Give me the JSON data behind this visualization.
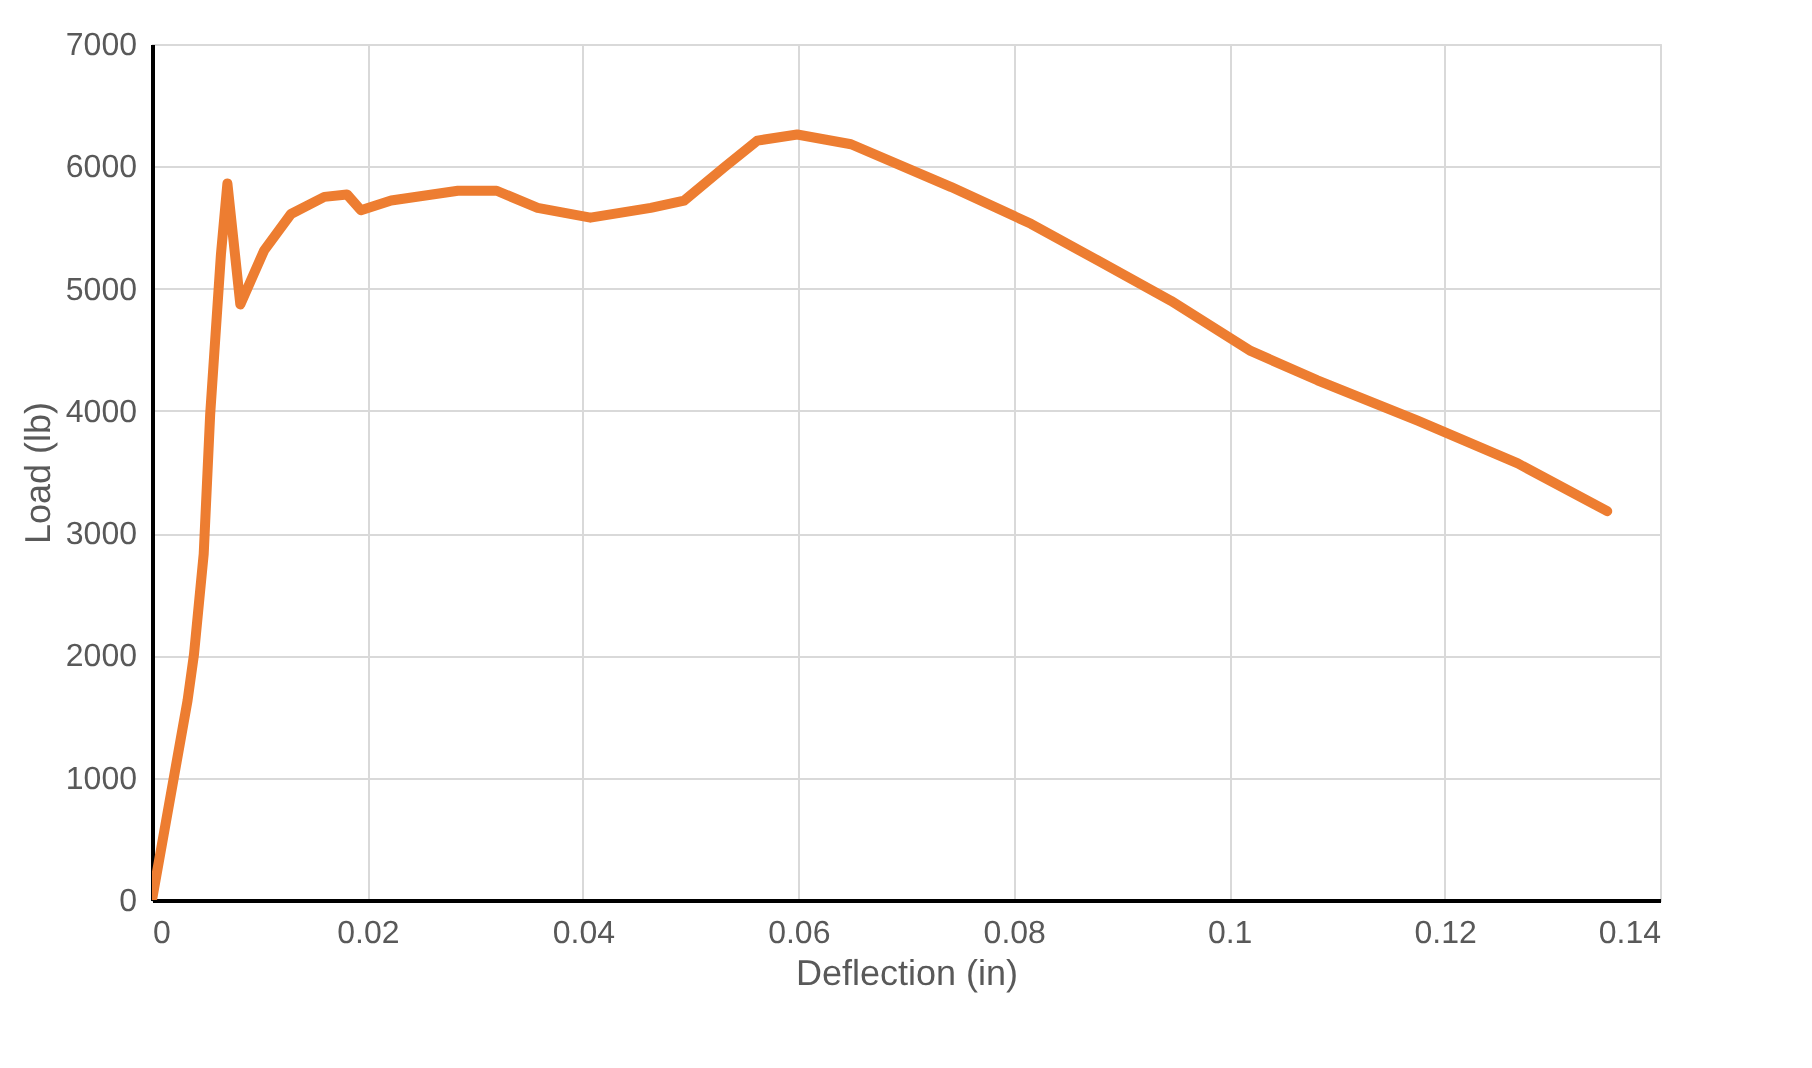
{
  "chart_data": {
    "type": "line",
    "xlabel": "Deflection (in)",
    "ylabel": "Load (lb)",
    "xlim": [
      0,
      0.14
    ],
    "xticks": [
      0,
      0.02,
      0.04,
      0.06,
      0.08,
      0.1,
      0.12,
      0.14
    ],
    "ylim": [
      0,
      7000
    ],
    "yticks": [
      0,
      1000,
      2000,
      3000,
      4000,
      5000,
      6000,
      7000
    ],
    "grid": true,
    "marker": "none",
    "line_style": "solid",
    "series": [
      {
        "color": "#ed7d31",
        "x": [
          0,
          0.0033,
          0.0039,
          0.0048,
          0.0054,
          0.0064,
          0.007,
          0.0082,
          0.0104,
          0.0129,
          0.016,
          0.0181,
          0.0194,
          0.0222,
          0.0284,
          0.032,
          0.0358,
          0.0407,
          0.0463,
          0.0494,
          0.0531,
          0.0562,
          0.0599,
          0.0649,
          0.0742,
          0.0816,
          0.0878,
          0.0946,
          0.102,
          0.1082,
          0.1175,
          0.1268,
          0.1351
        ],
        "values": [
          0,
          1630,
          2010,
          2830,
          3970,
          5280,
          5860,
          4870,
          5310,
          5610,
          5750,
          5770,
          5640,
          5720,
          5800,
          5800,
          5660,
          5580,
          5660,
          5720,
          5990,
          6210,
          6260,
          6180,
          5830,
          5530,
          5230,
          4900,
          4490,
          4250,
          3920,
          3570,
          3180
        ]
      }
    ]
  }
}
